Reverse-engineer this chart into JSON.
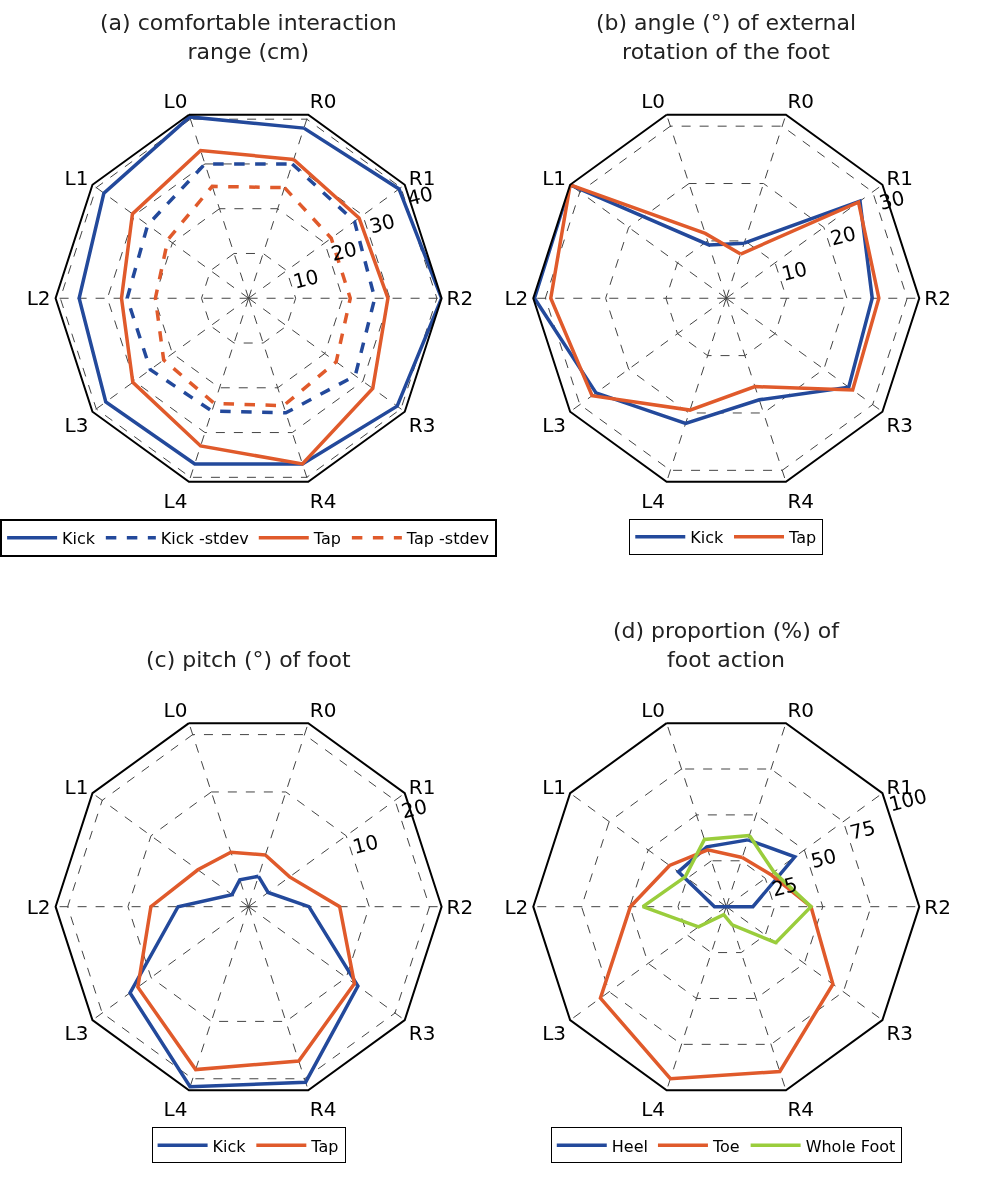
{
  "chart_data": [
    {
      "type": "radar",
      "title": "(a) comfortable interaction\nrange (cm)",
      "categories": [
        "R0",
        "R1",
        "R2",
        "R3",
        "R4",
        "L4",
        "L3",
        "L2",
        "L1",
        "L0"
      ],
      "ylim": [
        0,
        41
      ],
      "yticks": [
        10,
        20,
        30,
        40
      ],
      "grid": true,
      "legend": "bottom",
      "series": [
        {
          "name": "Kick",
          "color": "#23499b",
          "line_style": "solid",
          "values": [
            38,
            39.5,
            41,
            39,
            37,
            37,
            37.5,
            36,
            38,
            40.5
          ]
        },
        {
          "name": "Kick -stdev",
          "color": "#23499b",
          "line_style": "dashed",
          "values": [
            30,
            27.8,
            26.8,
            28,
            25.6,
            25.2,
            25.8,
            25.8,
            26.5,
            30
          ]
        },
        {
          "name": "Tap",
          "color": "#e05a2b",
          "line_style": "solid",
          "values": [
            31,
            29,
            29.6,
            32.6,
            37,
            33,
            30.4,
            27,
            30.5,
            33
          ]
        },
        {
          "name": "Tap -stdev",
          "color": "#e05a2b",
          "line_style": "dashed",
          "values": [
            24.7,
            21.7,
            21.6,
            23,
            24,
            23.5,
            22.3,
            19.8,
            21.2,
            25
          ]
        }
      ]
    },
    {
      "type": "radar",
      "title": "(b) angle (°) of external\nrotation of the foot",
      "categories": [
        "R0",
        "R1",
        "R2",
        "R3",
        "R4",
        "L4",
        "L3",
        "L2",
        "L1",
        "L0"
      ],
      "ylim": [
        0,
        32
      ],
      "yticks": [
        10,
        20,
        30
      ],
      "grid": true,
      "legend": "bottom",
      "series": [
        {
          "name": "Kick",
          "color": "#23499b",
          "line_style": "solid",
          "values": [
            9.6,
            27.4,
            24.2,
            25.1,
            17.7,
            21.8,
            26.7,
            31.8,
            32,
            9.3
          ]
        },
        {
          "name": "Tap",
          "color": "#e05a2b",
          "line_style": "solid",
          "values": [
            7.7,
            27.1,
            25.3,
            25.9,
            15.4,
            19.5,
            27.5,
            29.1,
            32,
            11.3
          ]
        }
      ]
    },
    {
      "type": "radar",
      "title": "(c) pitch (°) of foot",
      "categories": [
        "R0",
        "R1",
        "R2",
        "R3",
        "R4",
        "L4",
        "L3",
        "L2",
        "L1",
        "L0"
      ],
      "ylim": [
        -10,
        22
      ],
      "yticks": [
        10,
        20
      ],
      "grid": true,
      "legend": "bottom",
      "series": [
        {
          "name": "Kick",
          "color": "#23499b",
          "line_style": "solid",
          "values": [
            -4.7,
            -6,
            0,
            12.4,
            20.6,
            21.4,
            14.3,
            1.7,
            -6.6,
            -5.3
          ]
        },
        {
          "name": "Tap",
          "color": "#e05a2b",
          "line_style": "solid",
          "values": [
            -1,
            -1.6,
            5.1,
            11.7,
            16.9,
            18.4,
            12.7,
            6.2,
            0.4,
            -0.5
          ]
        }
      ]
    },
    {
      "type": "radar",
      "title": "(d) proportion (%) of\nfoot action",
      "categories": [
        "R0",
        "R1",
        "R2",
        "R3",
        "R4",
        "L4",
        "L3",
        "L2",
        "L1",
        "L0"
      ],
      "ylim": [
        0,
        100
      ],
      "yticks": [
        25,
        50,
        75,
        100
      ],
      "grid": true,
      "legend": "bottom",
      "series": [
        {
          "name": "Heel",
          "color": "#23499b",
          "line_style": "solid",
          "values": [
            36.4,
            43.9,
            13.8,
            0,
            0,
            0,
            0,
            6.1,
            30.7,
            32.6
          ]
        },
        {
          "name": "Toe",
          "color": "#e05a2b",
          "line_style": "solid",
          "values": [
            26.8,
            28.4,
            43.9,
            68.3,
            89.8,
            93.7,
            80.6,
            49.7,
            36.3,
            31
          ]
        },
        {
          "name": "Whole Foot",
          "color": "#9acd3c",
          "line_style": "solid",
          "values": [
            38.8,
            30.5,
            43.9,
            31.7,
            9.9,
            4.3,
            17.8,
            43.2,
            26.3,
            36.6
          ]
        }
      ]
    }
  ]
}
